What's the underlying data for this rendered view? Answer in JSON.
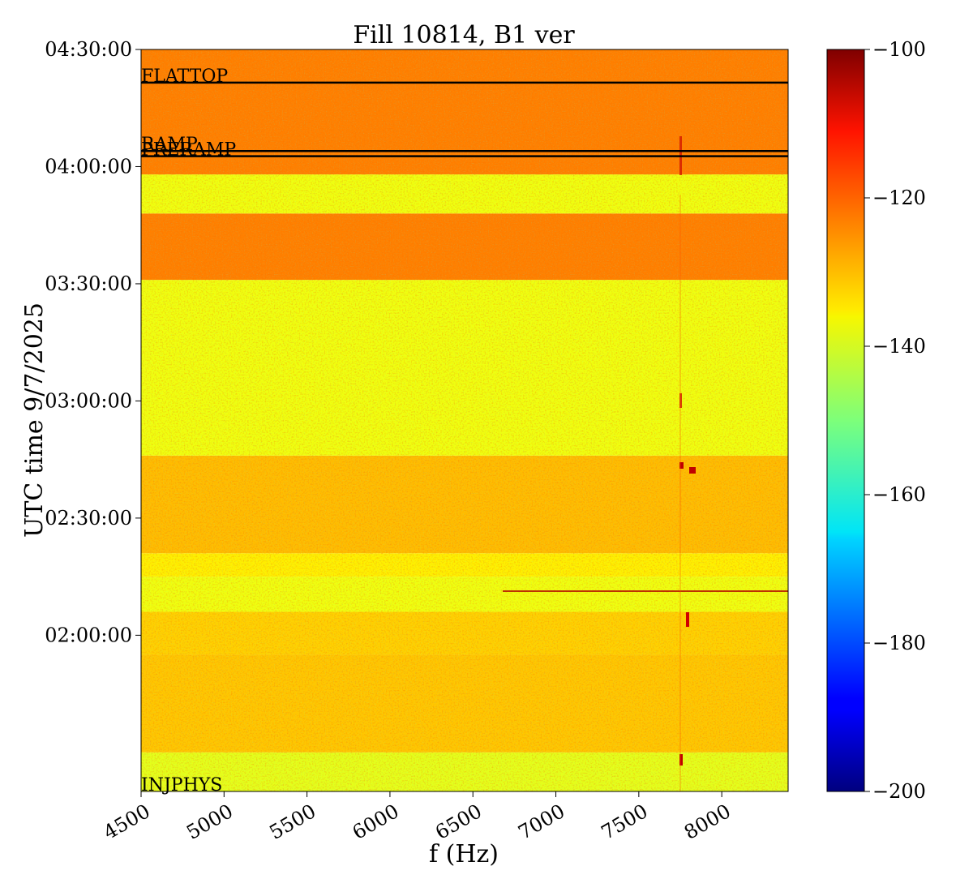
{
  "chart_data": {
    "type": "heatmap",
    "title": "Fill 10814, B1 ver",
    "xlabel": "f (Hz)",
    "ylabel": "UTC time 9/7/2025",
    "xlim": [
      4500,
      8400
    ],
    "ylim": [
      "01:20:00",
      "04:30:00"
    ],
    "x_ticks": [
      "4500",
      "5000",
      "5500",
      "6000",
      "6500",
      "7000",
      "7500",
      "8000"
    ],
    "y_ticks": [
      "02:00:00",
      "02:30:00",
      "03:00:00",
      "03:30:00",
      "04:00:00",
      "04:30:00"
    ],
    "colorbar": {
      "colormap": "jet",
      "range": [
        -200,
        -100
      ],
      "ticks": [
        "−200",
        "−180",
        "−160",
        "−140",
        "−120",
        "−100"
      ]
    },
    "bands": [
      {
        "from": "01:20:00",
        "to": "01:30:00",
        "level": -140
      },
      {
        "from": "01:30:00",
        "to": "01:55:00",
        "level": -132
      },
      {
        "from": "01:55:00",
        "to": "02:06:00",
        "level": -133
      },
      {
        "from": "02:06:00",
        "to": "02:15:00",
        "level": -139
      },
      {
        "from": "02:15:00",
        "to": "02:21:00",
        "level": -136
      },
      {
        "from": "02:21:00",
        "to": "02:46:00",
        "level": -131
      },
      {
        "from": "02:46:00",
        "to": "03:31:00",
        "level": -139
      },
      {
        "from": "03:31:00",
        "to": "03:48:00",
        "level": -125
      },
      {
        "from": "03:48:00",
        "to": "03:58:00",
        "level": -139
      },
      {
        "from": "03:58:00",
        "to": "04:30:00",
        "level": -125
      }
    ],
    "markers": [
      {
        "label": "FLATTOP",
        "time": "04:21:30"
      },
      {
        "label": "RAMP",
        "time": "04:04:00"
      },
      {
        "label": "PRERAMP",
        "time": "04:02:40"
      },
      {
        "label": "INJPHYS",
        "time": "01:20:00"
      }
    ]
  }
}
